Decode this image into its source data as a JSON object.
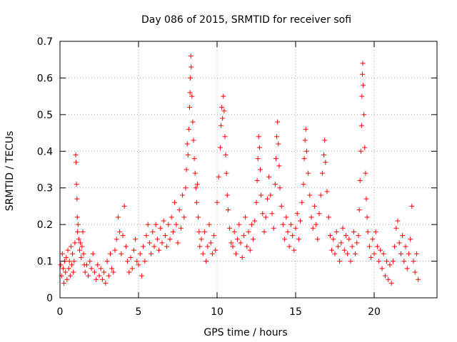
{
  "chart_data": {
    "type": "scatter",
    "title": "Day 086 of 2015, SRMTID for receiver sofi",
    "xlabel": "GPS time / hours",
    "ylabel": "SRMTID / TECUs",
    "xlim": [
      0,
      24
    ],
    "ylim": [
      0,
      0.7
    ],
    "x_ticks": [
      0,
      5,
      10,
      15,
      20
    ],
    "y_ticks": [
      0,
      0.1,
      0.2,
      0.3,
      0.4,
      0.5,
      0.6,
      0.7
    ],
    "x_tick_labels": [
      "0",
      "5",
      "10",
      "15",
      "20"
    ],
    "y_tick_labels": [
      "0",
      "0.1",
      "0.2",
      "0.3",
      "0.4",
      "0.5",
      "0.6",
      "0.7"
    ],
    "grid": true,
    "marker": "+",
    "color": "#ff0000",
    "series": [
      {
        "name": "SRMTID",
        "points": [
          [
            0.05,
            0.09
          ],
          [
            0.1,
            0.06
          ],
          [
            0.15,
            0.12
          ],
          [
            0.2,
            0.08
          ],
          [
            0.25,
            0.04
          ],
          [
            0.3,
            0.1
          ],
          [
            0.35,
            0.07
          ],
          [
            0.4,
            0.11
          ],
          [
            0.45,
            0.05
          ],
          [
            0.5,
            0.13
          ],
          [
            0.55,
            0.08
          ],
          [
            0.6,
            0.1
          ],
          [
            0.65,
            0.06
          ],
          [
            0.7,
            0.14
          ],
          [
            0.75,
            0.09
          ],
          [
            0.8,
            0.12
          ],
          [
            0.85,
            0.07
          ],
          [
            0.9,
            0.1
          ],
          [
            0.95,
            0.15
          ],
          [
            1.0,
            0.39
          ],
          [
            1.02,
            0.37
          ],
          [
            1.05,
            0.31
          ],
          [
            1.08,
            0.27
          ],
          [
            1.1,
            0.22
          ],
          [
            1.12,
            0.18
          ],
          [
            1.15,
            0.2
          ],
          [
            1.2,
            0.16
          ],
          [
            1.25,
            0.13
          ],
          [
            1.3,
            0.15
          ],
          [
            1.35,
            0.11
          ],
          [
            1.4,
            0.14
          ],
          [
            1.45,
            0.18
          ],
          [
            1.5,
            0.12
          ],
          [
            1.55,
            0.09
          ],
          [
            1.6,
            0.07
          ],
          [
            1.7,
            0.09
          ],
          [
            1.8,
            0.06
          ],
          [
            1.9,
            0.1
          ],
          [
            2.0,
            0.08
          ],
          [
            2.1,
            0.12
          ],
          [
            2.2,
            0.07
          ],
          [
            2.3,
            0.05
          ],
          [
            2.4,
            0.09
          ],
          [
            2.5,
            0.06
          ],
          [
            2.6,
            0.08
          ],
          [
            2.7,
            0.05
          ],
          [
            2.8,
            0.07
          ],
          [
            2.9,
            0.04
          ],
          [
            3.0,
            0.1
          ],
          [
            3.1,
            0.06
          ],
          [
            3.2,
            0.12
          ],
          [
            3.3,
            0.08
          ],
          [
            3.4,
            0.07
          ],
          [
            3.5,
            0.13
          ],
          [
            3.6,
            0.16
          ],
          [
            3.7,
            0.22
          ],
          [
            3.8,
            0.18
          ],
          [
            3.9,
            0.12
          ],
          [
            4.0,
            0.17
          ],
          [
            4.1,
            0.25
          ],
          [
            4.2,
            0.14
          ],
          [
            4.3,
            0.1
          ],
          [
            4.4,
            0.07
          ],
          [
            4.5,
            0.11
          ],
          [
            4.6,
            0.08
          ],
          [
            4.7,
            0.13
          ],
          [
            4.8,
            0.16
          ],
          [
            4.9,
            0.1
          ],
          [
            5.0,
            0.09
          ],
          [
            5.1,
            0.12
          ],
          [
            5.2,
            0.06
          ],
          [
            5.3,
            0.14
          ],
          [
            5.4,
            0.1
          ],
          [
            5.5,
            0.17
          ],
          [
            5.6,
            0.2
          ],
          [
            5.7,
            0.15
          ],
          [
            5.8,
            0.12
          ],
          [
            5.9,
            0.18
          ],
          [
            6.0,
            0.14
          ],
          [
            6.1,
            0.2
          ],
          [
            6.2,
            0.16
          ],
          [
            6.3,
            0.13
          ],
          [
            6.4,
            0.19
          ],
          [
            6.5,
            0.15
          ],
          [
            6.6,
            0.21
          ],
          [
            6.7,
            0.17
          ],
          [
            6.8,
            0.14
          ],
          [
            6.9,
            0.2
          ],
          [
            7.0,
            0.16
          ],
          [
            7.1,
            0.22
          ],
          [
            7.2,
            0.18
          ],
          [
            7.3,
            0.26
          ],
          [
            7.4,
            0.2
          ],
          [
            7.5,
            0.15
          ],
          [
            7.6,
            0.24
          ],
          [
            7.7,
            0.19
          ],
          [
            7.8,
            0.28
          ],
          [
            7.9,
            0.22
          ],
          [
            8.0,
            0.3
          ],
          [
            8.05,
            0.35
          ],
          [
            8.1,
            0.42
          ],
          [
            8.15,
            0.39
          ],
          [
            8.2,
            0.46
          ],
          [
            8.25,
            0.52
          ],
          [
            8.28,
            0.56
          ],
          [
            8.3,
            0.6
          ],
          [
            8.33,
            0.66
          ],
          [
            8.35,
            0.63
          ],
          [
            8.4,
            0.55
          ],
          [
            8.45,
            0.48
          ],
          [
            8.5,
            0.43
          ],
          [
            8.55,
            0.38
          ],
          [
            8.6,
            0.34
          ],
          [
            8.65,
            0.3
          ],
          [
            8.7,
            0.26
          ],
          [
            8.75,
            0.31
          ],
          [
            8.8,
            0.22
          ],
          [
            8.85,
            0.18
          ],
          [
            8.9,
            0.14
          ],
          [
            9.0,
            0.16
          ],
          [
            9.1,
            0.12
          ],
          [
            9.2,
            0.18
          ],
          [
            9.3,
            0.1
          ],
          [
            9.4,
            0.14
          ],
          [
            9.5,
            0.2
          ],
          [
            9.6,
            0.15
          ],
          [
            9.7,
            0.12
          ],
          [
            9.8,
            0.17
          ],
          [
            9.9,
            0.13
          ],
          [
            10.0,
            0.26
          ],
          [
            10.1,
            0.33
          ],
          [
            10.2,
            0.41
          ],
          [
            10.25,
            0.47
          ],
          [
            10.3,
            0.52
          ],
          [
            10.35,
            0.49
          ],
          [
            10.4,
            0.55
          ],
          [
            10.45,
            0.51
          ],
          [
            10.5,
            0.44
          ],
          [
            10.55,
            0.39
          ],
          [
            10.6,
            0.34
          ],
          [
            10.65,
            0.28
          ],
          [
            10.7,
            0.24
          ],
          [
            10.8,
            0.19
          ],
          [
            10.9,
            0.15
          ],
          [
            11.0,
            0.14
          ],
          [
            11.1,
            0.18
          ],
          [
            11.2,
            0.12
          ],
          [
            11.3,
            0.16
          ],
          [
            11.4,
            0.2
          ],
          [
            11.5,
            0.15
          ],
          [
            11.6,
            0.11
          ],
          [
            11.7,
            0.17
          ],
          [
            11.8,
            0.22
          ],
          [
            11.9,
            0.14
          ],
          [
            12.0,
            0.18
          ],
          [
            12.1,
            0.13
          ],
          [
            12.2,
            0.2
          ],
          [
            12.3,
            0.16
          ],
          [
            12.4,
            0.21
          ],
          [
            12.5,
            0.26
          ],
          [
            12.55,
            0.32
          ],
          [
            12.6,
            0.38
          ],
          [
            12.65,
            0.44
          ],
          [
            12.7,
            0.41
          ],
          [
            12.75,
            0.35
          ],
          [
            12.8,
            0.28
          ],
          [
            12.9,
            0.23
          ],
          [
            13.0,
            0.18
          ],
          [
            13.1,
            0.22
          ],
          [
            13.2,
            0.27
          ],
          [
            13.3,
            0.33
          ],
          [
            13.4,
            0.28
          ],
          [
            13.5,
            0.23
          ],
          [
            13.6,
            0.19
          ],
          [
            13.7,
            0.31
          ],
          [
            13.75,
            0.38
          ],
          [
            13.8,
            0.44
          ],
          [
            13.85,
            0.48
          ],
          [
            13.9,
            0.42
          ],
          [
            13.95,
            0.36
          ],
          [
            14.0,
            0.3
          ],
          [
            14.1,
            0.25
          ],
          [
            14.2,
            0.2
          ],
          [
            14.3,
            0.16
          ],
          [
            14.4,
            0.22
          ],
          [
            14.5,
            0.18
          ],
          [
            14.6,
            0.14
          ],
          [
            14.7,
            0.2
          ],
          [
            14.8,
            0.17
          ],
          [
            14.9,
            0.13
          ],
          [
            15.0,
            0.19
          ],
          [
            15.1,
            0.23
          ],
          [
            15.2,
            0.16
          ],
          [
            15.3,
            0.21
          ],
          [
            15.4,
            0.26
          ],
          [
            15.5,
            0.31
          ],
          [
            15.55,
            0.38
          ],
          [
            15.6,
            0.43
          ],
          [
            15.65,
            0.46
          ],
          [
            15.7,
            0.4
          ],
          [
            15.8,
            0.34
          ],
          [
            15.9,
            0.28
          ],
          [
            16.0,
            0.22
          ],
          [
            16.1,
            0.19
          ],
          [
            16.2,
            0.25
          ],
          [
            16.3,
            0.2
          ],
          [
            16.4,
            0.16
          ],
          [
            16.5,
            0.23
          ],
          [
            16.6,
            0.28
          ],
          [
            16.7,
            0.34
          ],
          [
            16.8,
            0.39
          ],
          [
            16.85,
            0.43
          ],
          [
            16.9,
            0.37
          ],
          [
            17.0,
            0.29
          ],
          [
            17.1,
            0.22
          ],
          [
            17.2,
            0.17
          ],
          [
            17.3,
            0.13
          ],
          [
            17.4,
            0.16
          ],
          [
            17.5,
            0.12
          ],
          [
            17.6,
            0.18
          ],
          [
            17.7,
            0.14
          ],
          [
            17.8,
            0.1
          ],
          [
            17.9,
            0.15
          ],
          [
            18.0,
            0.19
          ],
          [
            18.1,
            0.13
          ],
          [
            18.2,
            0.17
          ],
          [
            18.3,
            0.12
          ],
          [
            18.4,
            0.16
          ],
          [
            18.5,
            0.1
          ],
          [
            18.6,
            0.14
          ],
          [
            18.7,
            0.18
          ],
          [
            18.8,
            0.12
          ],
          [
            18.9,
            0.15
          ],
          [
            19.0,
            0.17
          ],
          [
            19.05,
            0.24
          ],
          [
            19.1,
            0.32
          ],
          [
            19.15,
            0.4
          ],
          [
            19.2,
            0.47
          ],
          [
            19.22,
            0.55
          ],
          [
            19.25,
            0.61
          ],
          [
            19.27,
            0.64
          ],
          [
            19.3,
            0.58
          ],
          [
            19.35,
            0.5
          ],
          [
            19.4,
            0.41
          ],
          [
            19.45,
            0.34
          ],
          [
            19.5,
            0.27
          ],
          [
            19.55,
            0.22
          ],
          [
            19.6,
            0.18
          ],
          [
            19.7,
            0.14
          ],
          [
            19.8,
            0.11
          ],
          [
            19.9,
            0.16
          ],
          [
            20.0,
            0.12
          ],
          [
            20.1,
            0.18
          ],
          [
            20.2,
            0.14
          ],
          [
            20.3,
            0.1
          ],
          [
            20.4,
            0.13
          ],
          [
            20.5,
            0.08
          ],
          [
            20.6,
            0.12
          ],
          [
            20.7,
            0.06
          ],
          [
            20.8,
            0.1
          ],
          [
            20.9,
            0.05
          ],
          [
            21.0,
            0.09
          ],
          [
            21.1,
            0.04
          ],
          [
            21.2,
            0.1
          ],
          [
            21.3,
            0.14
          ],
          [
            21.4,
            0.19
          ],
          [
            21.5,
            0.21
          ],
          [
            21.6,
            0.15
          ],
          [
            21.7,
            0.12
          ],
          [
            21.8,
            0.17
          ],
          [
            21.9,
            0.1
          ],
          [
            22.0,
            0.14
          ],
          [
            22.1,
            0.08
          ],
          [
            22.2,
            0.12
          ],
          [
            22.3,
            0.16
          ],
          [
            22.4,
            0.25
          ],
          [
            22.5,
            0.1
          ],
          [
            22.6,
            0.07
          ],
          [
            22.7,
            0.12
          ],
          [
            22.8,
            0.05
          ]
        ]
      }
    ]
  }
}
